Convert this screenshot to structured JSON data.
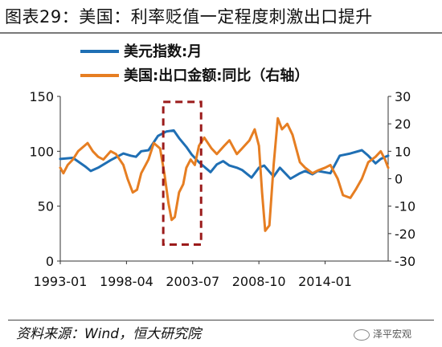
{
  "title": "图表29：美国：利率贬值一定程度刺激出口提升",
  "source": "资料来源：Wind，恒大研究院",
  "watermark": "泽平宏观",
  "icons": {
    "watermark": "wechat-icon"
  },
  "colors": {
    "usd_index": "#1f6fb4",
    "exports_yoy": "#e67e22",
    "highlight_box": "#9b1b1b"
  },
  "chart_data": {
    "type": "line",
    "x_tick_labels": [
      "1993-01",
      "1998-04",
      "2003-07",
      "2008-10",
      "2014-01"
    ],
    "x_range": [
      "1993-01",
      "2019-01"
    ],
    "left_axis": {
      "range": [
        0,
        150
      ],
      "ticks": [
        0,
        50,
        100,
        150
      ]
    },
    "right_axis": {
      "range": [
        -30,
        30
      ],
      "ticks": [
        -30,
        -20,
        -10,
        0,
        10,
        20,
        30
      ]
    },
    "legend_position": "top-left",
    "annotation": {
      "type": "dashed-box",
      "x_range": [
        "2001-03",
        "2004-03"
      ],
      "y_range_left": [
        15,
        145
      ]
    },
    "series": [
      {
        "name": "美元指数:月",
        "axis": "left",
        "x": [
          "1993-01",
          "1994-01",
          "1995-01",
          "1995-06",
          "1996-01",
          "1997-01",
          "1998-01",
          "1998-08",
          "1999-01",
          "1999-06",
          "2000-01",
          "2000-10",
          "2001-06",
          "2002-01",
          "2002-06",
          "2003-01",
          "2003-06",
          "2004-01",
          "2004-12",
          "2005-06",
          "2005-12",
          "2006-06",
          "2007-01",
          "2007-06",
          "2008-03",
          "2008-10",
          "2009-03",
          "2009-12",
          "2010-06",
          "2011-04",
          "2012-01",
          "2012-06",
          "2013-01",
          "2013-06",
          "2014-06",
          "2015-03",
          "2016-01",
          "2016-12",
          "2017-06",
          "2018-01",
          "2018-06",
          "2019-01"
        ],
        "values": [
          93,
          94,
          86,
          82,
          85,
          92,
          98,
          96,
          95,
          100,
          101,
          114,
          118,
          119,
          112,
          104,
          97,
          90,
          81,
          88,
          91,
          87,
          85,
          83,
          76,
          85,
          87,
          77,
          85,
          75,
          80,
          82,
          79,
          82,
          80,
          96,
          98,
          101,
          96,
          89,
          93,
          96
        ]
      },
      {
        "name": "美国:出口金额:同比（右轴）",
        "axis": "right",
        "x": [
          "1993-01",
          "1993-04",
          "1993-08",
          "1994-01",
          "1994-06",
          "1994-12",
          "1995-03",
          "1995-08",
          "1996-01",
          "1996-06",
          "1997-01",
          "1997-06",
          "1998-01",
          "1998-05",
          "1998-10",
          "1999-02",
          "1999-06",
          "2000-01",
          "2000-06",
          "2000-12",
          "2001-04",
          "2001-08",
          "2001-11",
          "2002-02",
          "2002-06",
          "2002-10",
          "2003-01",
          "2003-05",
          "2003-09",
          "2004-01",
          "2004-06",
          "2005-01",
          "2005-06",
          "2006-01",
          "2006-06",
          "2007-01",
          "2007-06",
          "2008-01",
          "2008-06",
          "2008-10",
          "2009-01",
          "2009-04",
          "2009-08",
          "2009-12",
          "2010-04",
          "2010-08",
          "2011-01",
          "2011-06",
          "2012-01",
          "2012-06",
          "2013-01",
          "2013-06",
          "2014-01",
          "2014-06",
          "2015-01",
          "2015-06",
          "2016-01",
          "2016-06",
          "2016-12",
          "2017-06",
          "2018-01",
          "2018-06",
          "2018-10",
          "2019-01"
        ],
        "values": [
          4,
          2,
          5,
          7,
          10,
          12,
          13,
          10,
          8,
          7,
          10,
          9,
          5,
          0,
          -5,
          -4,
          2,
          7,
          13,
          11,
          2,
          -9,
          -15,
          -14,
          -5,
          -2,
          4,
          7,
          5,
          12,
          15,
          11,
          9,
          12,
          14,
          9,
          11,
          14,
          18,
          12,
          -5,
          -19,
          -17,
          5,
          22,
          18,
          20,
          16,
          6,
          4,
          2,
          3,
          4,
          5,
          0,
          -6,
          -7,
          -4,
          0,
          6,
          8,
          10,
          7,
          4
        ]
      }
    ]
  }
}
